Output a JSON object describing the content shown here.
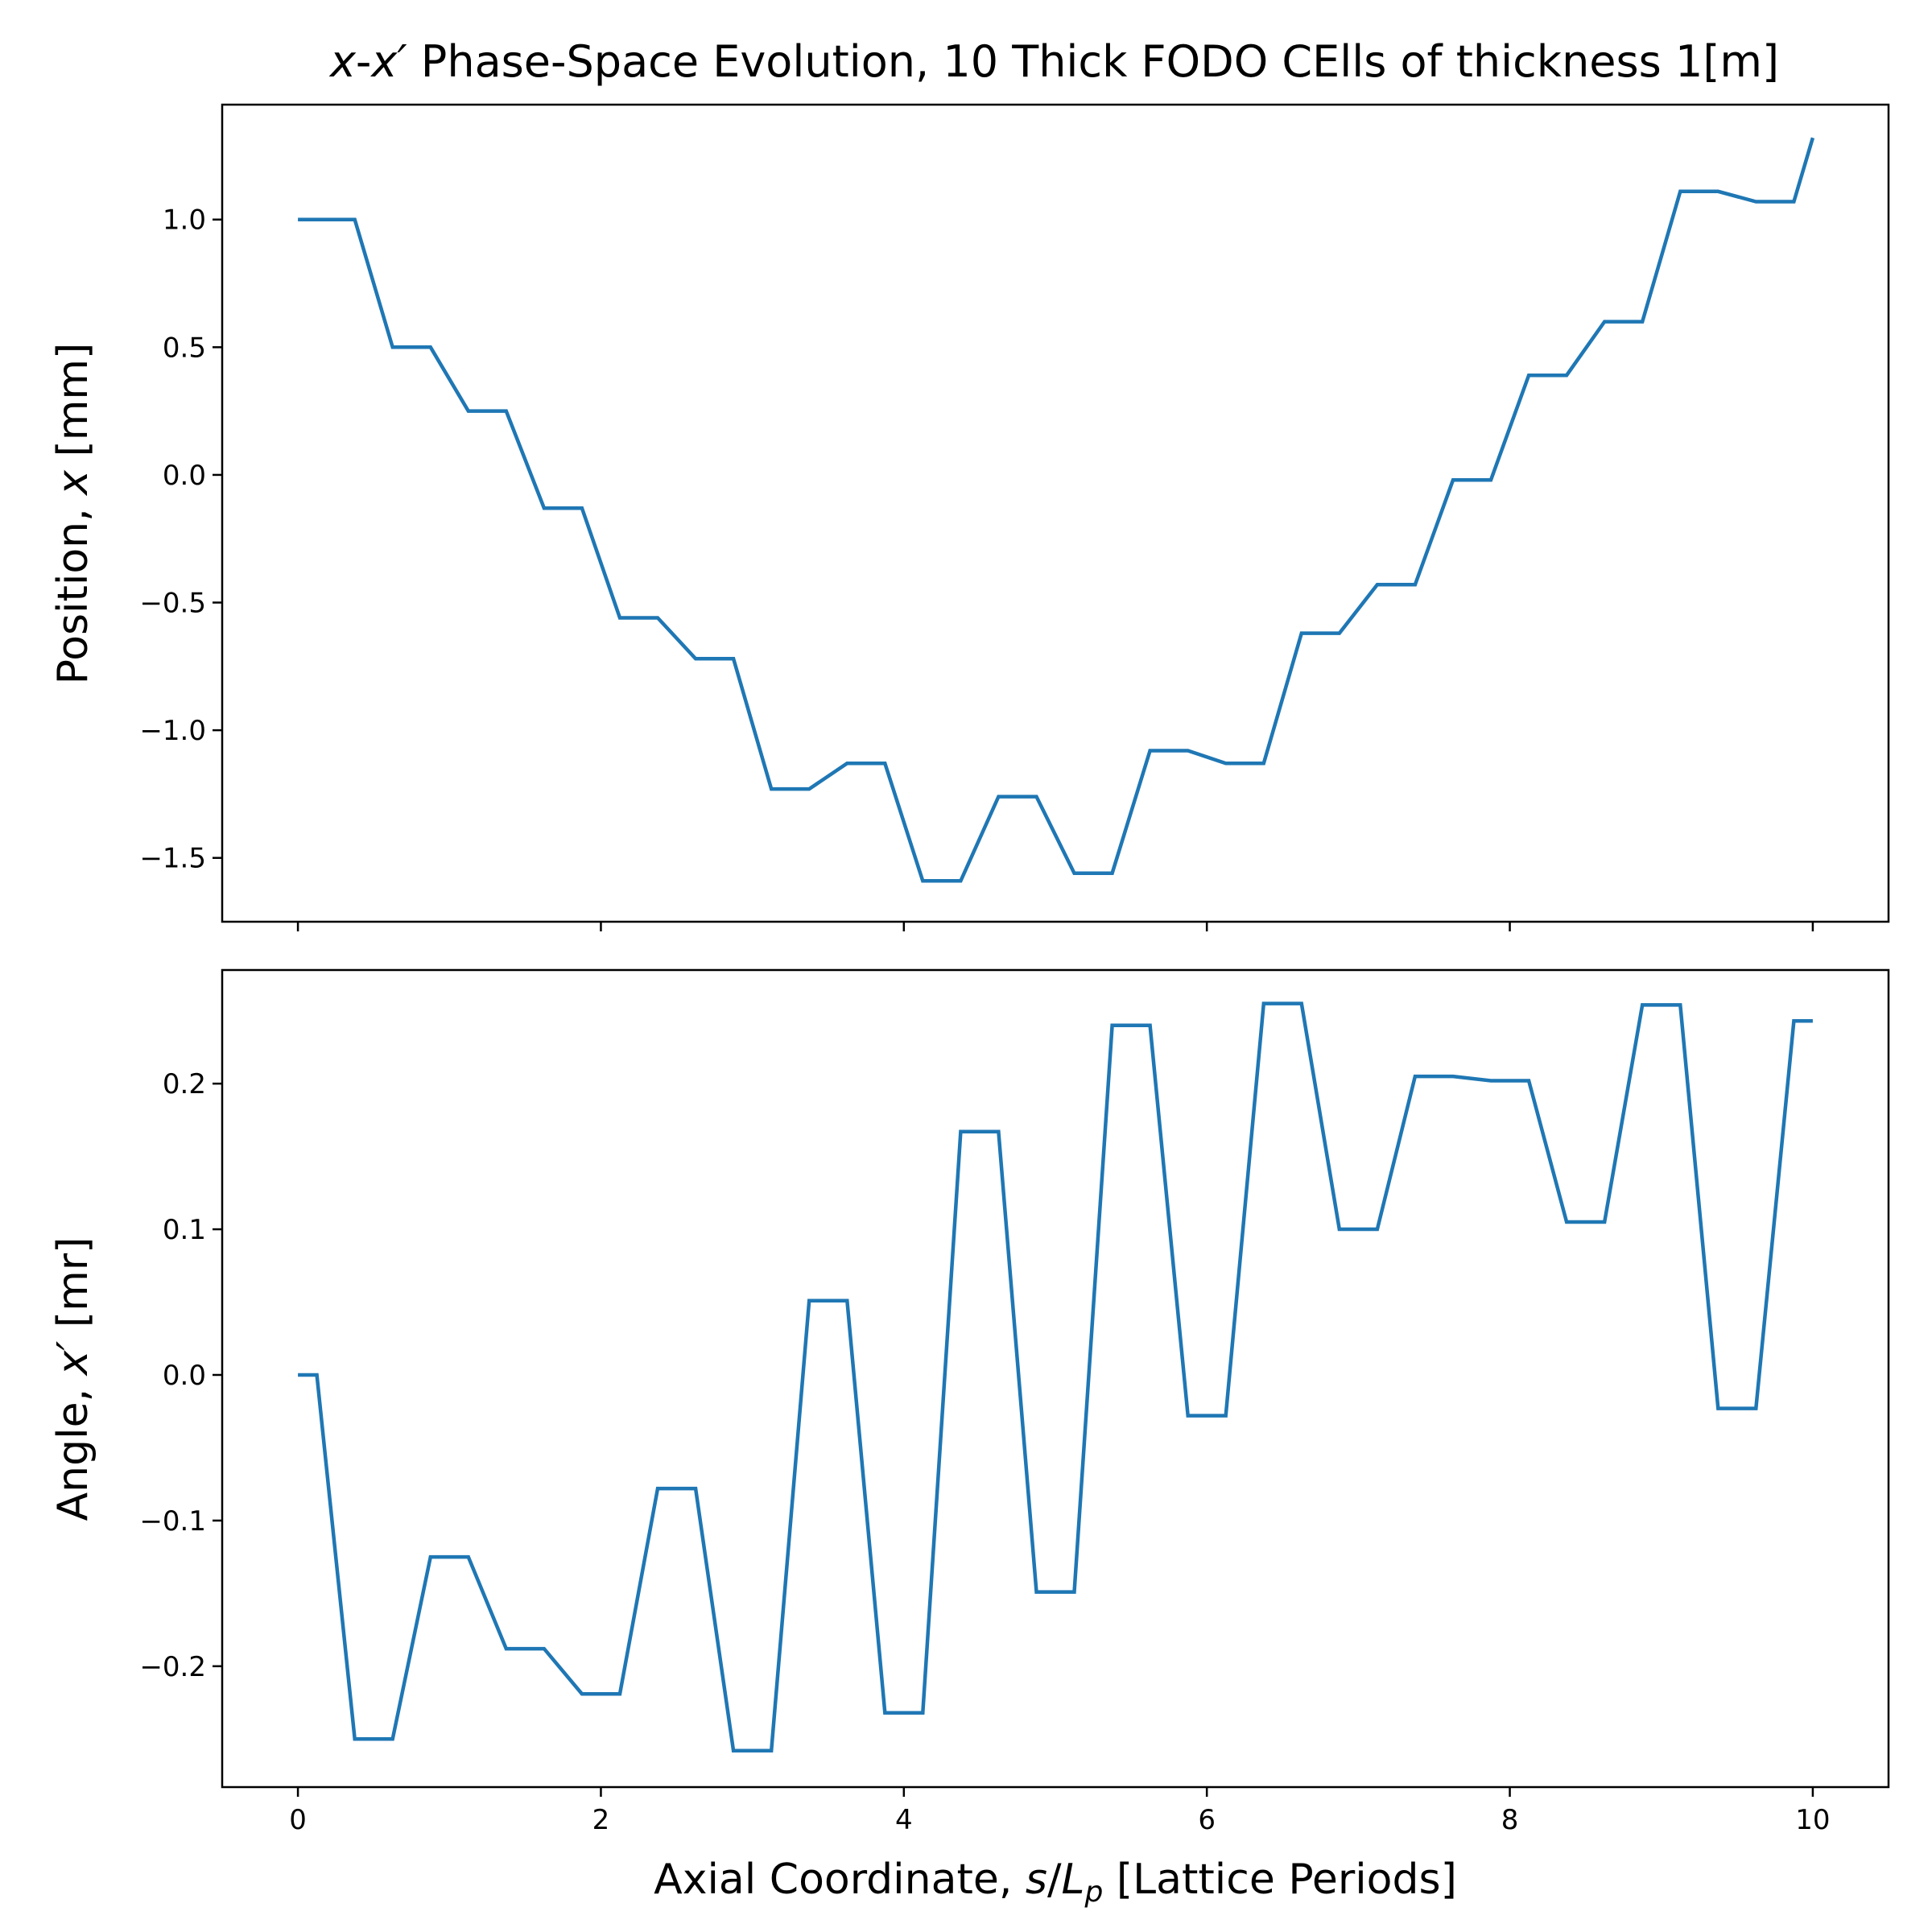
{
  "colors": {
    "series": "#1f77b4"
  },
  "chart_data": [
    {
      "type": "line",
      "title_parts": [
        "x",
        "-",
        "x′",
        " Phase-Space Evolution, 10 Thick FODO CElls of thickness 1[m]"
      ],
      "xlabel": "",
      "ylabel_parts": [
        "Position, ",
        "x",
        " [mm]"
      ],
      "xlim": [
        -0.5,
        10.5
      ],
      "ylim": [
        -1.75,
        1.45
      ],
      "xticks": [
        0,
        2,
        4,
        6,
        8,
        10
      ],
      "xtick_labels_shown": false,
      "yticks": [
        1.0,
        0.5,
        0.0,
        -0.5,
        -1.0,
        -1.5
      ],
      "ytick_labels": [
        "1.0",
        "0.5",
        "0.0",
        "−0.5",
        "−1.0",
        "−1.5"
      ],
      "grid": false,
      "series": [
        {
          "x": [
            0,
            0.125,
            0.375,
            0.625,
            0.875,
            1.125,
            1.375,
            1.625,
            1.875,
            2.125,
            2.375,
            2.625,
            2.875,
            3.125,
            3.375,
            3.625,
            3.875,
            4.125,
            4.375,
            4.625,
            4.875,
            5.125,
            5.375,
            5.625,
            5.875,
            6.125,
            6.375,
            6.625,
            6.875,
            7.125,
            7.375,
            7.625,
            7.875,
            8.125,
            8.375,
            8.625,
            8.875,
            9.125,
            9.375,
            9.625,
            9.875,
            10
          ],
          "y": [
            1.0,
            1.0,
            1.0,
            0.5,
            0.5,
            0.25,
            0.25,
            -0.13,
            -0.13,
            -0.56,
            -0.56,
            -0.72,
            -0.72,
            -1.23,
            -1.23,
            -1.13,
            -1.13,
            -1.59,
            -1.59,
            -1.26,
            -1.26,
            -1.56,
            -1.56,
            -1.08,
            -1.08,
            -1.13,
            -1.13,
            -0.62,
            -0.62,
            -0.43,
            -0.43,
            -0.02,
            -0.02,
            0.39,
            0.39,
            0.6,
            0.6,
            1.11,
            1.11,
            1.07,
            1.07,
            1.32
          ]
        }
      ]
    },
    {
      "type": "line",
      "xlabel_parts": [
        "Axial Coordinate, ",
        "s",
        "/",
        "L",
        "p",
        " [Lattice Periods]"
      ],
      "ylabel_parts": [
        "Angle, ",
        "x′",
        " [mr]"
      ],
      "xlim": [
        -0.5,
        10.5
      ],
      "ylim": [
        -0.283,
        0.278
      ],
      "xticks": [
        0,
        2,
        4,
        6,
        8,
        10
      ],
      "xtick_labels": [
        "0",
        "2",
        "4",
        "6",
        "8",
        "10"
      ],
      "yticks": [
        0.2,
        0.1,
        0.0,
        -0.1,
        -0.2
      ],
      "ytick_labels": [
        "0.2",
        "0.1",
        "0.0",
        "−0.1",
        "−0.2"
      ],
      "grid": false,
      "series": [
        {
          "x": [
            0,
            0.125,
            0.375,
            0.625,
            0.875,
            1.125,
            1.375,
            1.625,
            1.875,
            2.125,
            2.375,
            2.625,
            2.875,
            3.125,
            3.375,
            3.625,
            3.875,
            4.125,
            4.375,
            4.625,
            4.875,
            5.125,
            5.375,
            5.625,
            5.875,
            6.125,
            6.375,
            6.625,
            6.875,
            7.125,
            7.375,
            7.625,
            7.875,
            8.125,
            8.375,
            8.625,
            8.875,
            9.125,
            9.375,
            9.625,
            9.875,
            10
          ],
          "y": [
            0.0,
            0.0,
            -0.25,
            -0.25,
            -0.125,
            -0.125,
            -0.188,
            -0.188,
            -0.219,
            -0.219,
            -0.078,
            -0.078,
            -0.258,
            -0.258,
            0.051,
            0.051,
            -0.232,
            -0.232,
            0.167,
            0.167,
            -0.149,
            -0.149,
            0.24,
            0.24,
            -0.028,
            -0.028,
            0.255,
            0.255,
            0.1,
            0.1,
            0.205,
            0.205,
            0.202,
            0.202,
            0.105,
            0.105,
            0.254,
            0.254,
            -0.023,
            -0.023,
            0.243,
            0.243
          ]
        }
      ]
    }
  ]
}
